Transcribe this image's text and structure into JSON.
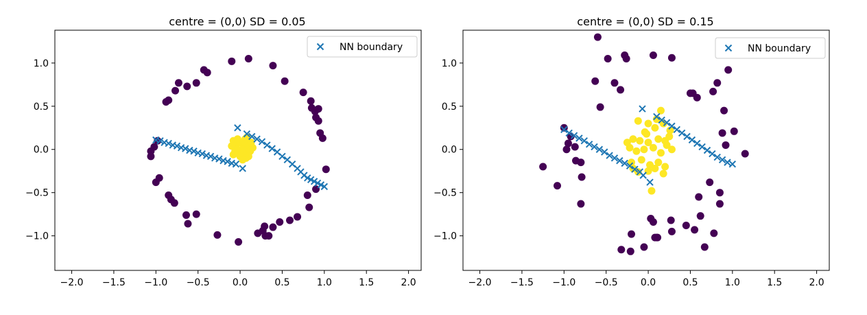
{
  "chart_data": [
    {
      "type": "scatter",
      "title": "centre = (0,0)   SD = 0.05",
      "xlim": [
        -2.2,
        2.15
      ],
      "ylim": [
        -1.4,
        1.38
      ],
      "xticks": [
        -2.0,
        -1.5,
        -1.0,
        -0.5,
        0.0,
        0.5,
        1.0,
        1.5,
        2.0
      ],
      "xtick_labels": [
        "−2.0",
        "−1.5",
        "−1.0",
        "−0.5",
        "0.0",
        "0.5",
        "1.0",
        "1.5",
        "2.0"
      ],
      "yticks": [
        1.0,
        0.5,
        0.0,
        -0.5,
        -1.0
      ],
      "ytick_labels": [
        "1.0",
        "0.5",
        "0.0",
        "−0.5",
        "−1.0"
      ],
      "legend": {
        "label": "NN boundary",
        "placement": "top-right"
      },
      "colors": {
        "outer": "#440154",
        "inner": "#fde725",
        "boundary": "#1f77b4"
      },
      "series": [
        {
          "name": "",
          "color_key": "outer",
          "marker": "circle",
          "points": [
            [
              -1.06,
              -0.02
            ],
            [
              -1.06,
              -0.08
            ],
            [
              -1.02,
              0.03
            ],
            [
              -0.98,
              0.1
            ],
            [
              -1.0,
              -0.38
            ],
            [
              -0.96,
              -0.33
            ],
            [
              -0.85,
              -0.53
            ],
            [
              -0.82,
              -0.58
            ],
            [
              -0.88,
              0.55
            ],
            [
              -0.85,
              0.57
            ],
            [
              -0.77,
              0.68
            ],
            [
              -0.73,
              0.77
            ],
            [
              -0.63,
              0.73
            ],
            [
              -0.52,
              0.77
            ],
            [
              -0.43,
              0.92
            ],
            [
              -0.39,
              0.89
            ],
            [
              -0.1,
              1.02
            ],
            [
              0.1,
              1.05
            ],
            [
              0.39,
              0.97
            ],
            [
              0.53,
              0.79
            ],
            [
              0.75,
              0.66
            ],
            [
              0.84,
              0.56
            ],
            [
              0.85,
              0.48
            ],
            [
              0.89,
              0.44
            ],
            [
              0.93,
              0.47
            ],
            [
              0.9,
              0.37
            ],
            [
              0.93,
              0.33
            ],
            [
              0.95,
              0.19
            ],
            [
              0.98,
              0.13
            ],
            [
              1.02,
              -0.23
            ],
            [
              0.9,
              -0.46
            ],
            [
              0.8,
              -0.53
            ],
            [
              0.82,
              -0.67
            ],
            [
              0.68,
              -0.78
            ],
            [
              0.59,
              -0.82
            ],
            [
              0.47,
              -0.84
            ],
            [
              0.39,
              -0.9
            ],
            [
              0.29,
              -0.89
            ],
            [
              0.27,
              -0.94
            ],
            [
              0.21,
              -0.97
            ],
            [
              0.3,
              -1.0
            ],
            [
              0.34,
              -1.0
            ],
            [
              -0.02,
              -1.07
            ],
            [
              -0.27,
              -0.99
            ],
            [
              -0.64,
              -0.76
            ],
            [
              -0.62,
              -0.86
            ],
            [
              -0.52,
              -0.75
            ],
            [
              -0.78,
              -0.62
            ]
          ]
        },
        {
          "name": "",
          "color_key": "inner",
          "marker": "circle",
          "points": [
            [
              -0.08,
              0.1
            ],
            [
              -0.05,
              0.05
            ],
            [
              0.0,
              0.08
            ],
            [
              0.05,
              0.04
            ],
            [
              0.08,
              0.0
            ],
            [
              0.04,
              -0.05
            ],
            [
              -0.02,
              -0.04
            ],
            [
              -0.06,
              -0.02
            ],
            [
              0.02,
              0.0
            ],
            [
              0.1,
              0.05
            ],
            [
              0.12,
              -0.02
            ],
            [
              0.06,
              0.12
            ],
            [
              -0.03,
              0.12
            ],
            [
              0.0,
              -0.08
            ],
            [
              -0.08,
              -0.06
            ],
            [
              0.1,
              -0.08
            ],
            [
              0.15,
              0.02
            ],
            [
              0.07,
              -0.1
            ],
            [
              0.04,
              0.09
            ],
            [
              -0.04,
              0.0
            ],
            [
              0.08,
              0.14
            ],
            [
              0.03,
              -0.12
            ],
            [
              -0.1,
              0.04
            ],
            [
              0.13,
              0.08
            ]
          ]
        },
        {
          "name": "NN boundary",
          "color_key": "boundary",
          "marker": "x",
          "points": [
            [
              -1.0,
              0.11
            ],
            [
              -0.95,
              0.1
            ],
            [
              -0.9,
              0.08
            ],
            [
              -0.85,
              0.07
            ],
            [
              -0.8,
              0.05
            ],
            [
              -0.75,
              0.04
            ],
            [
              -0.7,
              0.02
            ],
            [
              -0.65,
              0.01
            ],
            [
              -0.6,
              -0.01
            ],
            [
              -0.55,
              -0.02
            ],
            [
              -0.5,
              -0.04
            ],
            [
              -0.45,
              -0.05
            ],
            [
              -0.4,
              -0.07
            ],
            [
              -0.35,
              -0.08
            ],
            [
              -0.3,
              -0.1
            ],
            [
              -0.25,
              -0.11
            ],
            [
              -0.2,
              -0.13
            ],
            [
              -0.15,
              -0.14
            ],
            [
              -0.1,
              -0.16
            ],
            [
              -0.05,
              -0.17
            ],
            [
              0.03,
              -0.22
            ],
            [
              -0.03,
              0.25
            ],
            [
              0.08,
              0.18
            ],
            [
              0.14,
              0.15
            ],
            [
              0.2,
              0.12
            ],
            [
              0.26,
              0.09
            ],
            [
              0.32,
              0.05
            ],
            [
              0.38,
              0.01
            ],
            [
              0.44,
              -0.03
            ],
            [
              0.5,
              -0.08
            ],
            [
              0.56,
              -0.12
            ],
            [
              0.62,
              -0.17
            ],
            [
              0.68,
              -0.22
            ],
            [
              0.72,
              -0.26
            ],
            [
              0.76,
              -0.3
            ],
            [
              0.8,
              -0.33
            ],
            [
              0.84,
              -0.35
            ],
            [
              0.88,
              -0.37
            ],
            [
              0.92,
              -0.39
            ],
            [
              0.96,
              -0.41
            ],
            [
              1.0,
              -0.43
            ]
          ]
        }
      ]
    },
    {
      "type": "scatter",
      "title": "centre = (0,0)   SD = 0.15",
      "xlim": [
        -2.2,
        2.15
      ],
      "ylim": [
        -1.4,
        1.38
      ],
      "xticks": [
        -2.0,
        -1.5,
        -1.0,
        -0.5,
        0.0,
        0.5,
        1.0,
        1.5,
        2.0
      ],
      "xtick_labels": [
        "−2.0",
        "−1.5",
        "−1.0",
        "−0.5",
        "0.0",
        "0.5",
        "1.0",
        "1.5",
        "2.0"
      ],
      "yticks": [
        1.0,
        0.5,
        0.0,
        -0.5,
        -1.0
      ],
      "ytick_labels": [
        "1.0",
        "0.5",
        "0.0",
        "−0.5",
        "−1.0"
      ],
      "legend": {
        "label": "NN boundary",
        "placement": "top-right"
      },
      "colors": {
        "outer": "#440154",
        "inner": "#fde725",
        "boundary": "#1f77b4"
      },
      "series": [
        {
          "name": "",
          "color_key": "outer",
          "marker": "circle",
          "points": [
            [
              -0.6,
              1.3
            ],
            [
              -0.48,
              1.05
            ],
            [
              -0.28,
              1.09
            ],
            [
              -0.26,
              1.05
            ],
            [
              0.06,
              1.09
            ],
            [
              0.28,
              1.06
            ],
            [
              -0.63,
              0.79
            ],
            [
              -0.4,
              0.77
            ],
            [
              -0.33,
              0.69
            ],
            [
              -0.57,
              0.49
            ],
            [
              -1.0,
              0.25
            ],
            [
              -0.92,
              0.15
            ],
            [
              -0.95,
              0.07
            ],
            [
              -0.97,
              0.0
            ],
            [
              -0.87,
              0.03
            ],
            [
              -1.25,
              -0.2
            ],
            [
              -0.86,
              -0.13
            ],
            [
              -0.8,
              -0.15
            ],
            [
              -0.79,
              -0.32
            ],
            [
              -1.08,
              -0.42
            ],
            [
              -0.8,
              -0.63
            ],
            [
              0.5,
              0.65
            ],
            [
              0.53,
              0.65
            ],
            [
              0.58,
              0.6
            ],
            [
              0.77,
              0.67
            ],
            [
              0.82,
              0.77
            ],
            [
              0.95,
              0.92
            ],
            [
              0.9,
              0.45
            ],
            [
              0.88,
              0.19
            ],
            [
              0.92,
              0.05
            ],
            [
              1.02,
              0.21
            ],
            [
              1.15,
              -0.05
            ],
            [
              0.73,
              -0.38
            ],
            [
              0.85,
              -0.5
            ],
            [
              0.6,
              -0.55
            ],
            [
              0.85,
              -0.63
            ],
            [
              0.62,
              -0.77
            ],
            [
              0.45,
              -0.88
            ],
            [
              0.55,
              -0.93
            ],
            [
              0.67,
              -1.13
            ],
            [
              0.78,
              -0.97
            ],
            [
              0.27,
              -0.82
            ],
            [
              0.03,
              -0.8
            ],
            [
              0.06,
              -0.84
            ],
            [
              0.08,
              -1.02
            ],
            [
              0.1,
              -1.02
            ],
            [
              0.28,
              -0.95
            ],
            [
              0.11,
              -1.02
            ],
            [
              -0.2,
              -0.98
            ],
            [
              -0.32,
              -1.16
            ],
            [
              -0.21,
              -1.18
            ],
            [
              -0.05,
              -1.13
            ]
          ]
        },
        {
          "name": "",
          "color_key": "inner",
          "marker": "circle",
          "points": [
            [
              -0.12,
              0.33
            ],
            [
              0.0,
              0.3
            ],
            [
              -0.04,
              0.2
            ],
            [
              0.08,
              0.25
            ],
            [
              0.18,
              0.3
            ],
            [
              0.26,
              0.22
            ],
            [
              -0.18,
              0.12
            ],
            [
              -0.1,
              0.1
            ],
            [
              0.0,
              0.08
            ],
            [
              0.12,
              0.12
            ],
            [
              0.22,
              0.05
            ],
            [
              0.25,
              0.15
            ],
            [
              -0.22,
              0.02
            ],
            [
              -0.14,
              -0.02
            ],
            [
              -0.05,
              0.0
            ],
            [
              0.06,
              0.02
            ],
            [
              0.15,
              -0.04
            ],
            [
              0.2,
              0.1
            ],
            [
              -0.2,
              -0.15
            ],
            [
              -0.08,
              -0.12
            ],
            [
              0.02,
              -0.18
            ],
            [
              0.12,
              -0.15
            ],
            [
              0.2,
              -0.2
            ],
            [
              -0.18,
              -0.22
            ],
            [
              -0.12,
              -0.26
            ],
            [
              0.0,
              -0.25
            ],
            [
              0.08,
              -0.22
            ],
            [
              0.18,
              -0.28
            ],
            [
              0.04,
              -0.48
            ],
            [
              -0.02,
              0.18
            ],
            [
              0.28,
              0.0
            ],
            [
              -0.25,
              0.08
            ],
            [
              0.1,
              0.35
            ],
            [
              0.15,
              0.45
            ]
          ]
        },
        {
          "name": "NN boundary",
          "color_key": "boundary",
          "marker": "x",
          "points": [
            [
              -1.0,
              0.23
            ],
            [
              -0.94,
              0.19
            ],
            [
              -0.88,
              0.16
            ],
            [
              -0.82,
              0.13
            ],
            [
              -0.76,
              0.1
            ],
            [
              -0.7,
              0.06
            ],
            [
              -0.64,
              0.03
            ],
            [
              -0.58,
              0.0
            ],
            [
              -0.52,
              -0.03
            ],
            [
              -0.46,
              -0.07
            ],
            [
              -0.4,
              -0.1
            ],
            [
              -0.34,
              -0.13
            ],
            [
              -0.28,
              -0.16
            ],
            [
              -0.22,
              -0.19
            ],
            [
              -0.16,
              -0.23
            ],
            [
              -0.1,
              -0.26
            ],
            [
              -0.06,
              -0.3
            ],
            [
              0.02,
              -0.38
            ],
            [
              -0.07,
              0.47
            ],
            [
              0.1,
              0.38
            ],
            [
              0.16,
              0.34
            ],
            [
              0.22,
              0.31
            ],
            [
              0.28,
              0.27
            ],
            [
              0.34,
              0.23
            ],
            [
              0.4,
              0.19
            ],
            [
              0.46,
              0.15
            ],
            [
              0.52,
              0.11
            ],
            [
              0.58,
              0.07
            ],
            [
              0.64,
              0.03
            ],
            [
              0.7,
              -0.01
            ],
            [
              0.76,
              -0.05
            ],
            [
              0.82,
              -0.09
            ],
            [
              0.88,
              -0.12
            ],
            [
              0.94,
              -0.15
            ],
            [
              1.0,
              -0.17
            ]
          ]
        }
      ]
    }
  ]
}
